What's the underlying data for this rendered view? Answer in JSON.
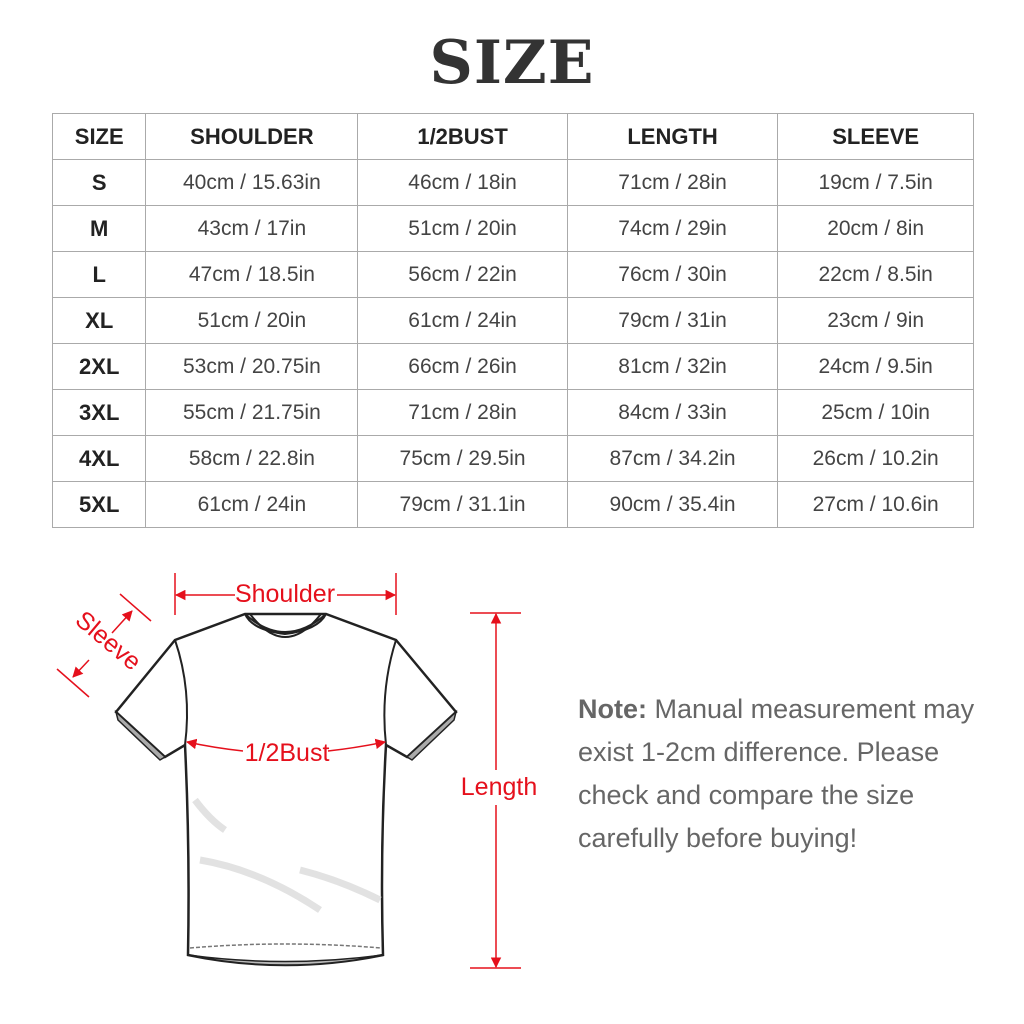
{
  "title": "SIZE",
  "table": {
    "headers": [
      "SIZE",
      "SHOULDER",
      "1/2BUST",
      "LENGTH",
      "SLEEVE"
    ],
    "rows": [
      [
        "S",
        "40cm / 15.63in",
        "46cm / 18in",
        "71cm / 28in",
        "19cm / 7.5in"
      ],
      [
        "M",
        "43cm / 17in",
        "51cm / 20in",
        "74cm / 29in",
        "20cm / 8in"
      ],
      [
        "L",
        "47cm / 18.5in",
        "56cm / 22in",
        "76cm / 30in",
        "22cm / 8.5in"
      ],
      [
        "XL",
        "51cm / 20in",
        "61cm / 24in",
        "79cm / 31in",
        "23cm / 9in"
      ],
      [
        "2XL",
        "53cm / 20.75in",
        "66cm / 26in",
        "81cm / 32in",
        "24cm / 9.5in"
      ],
      [
        "3XL",
        "55cm / 21.75in",
        "71cm / 28in",
        "84cm / 33in",
        "25cm / 10in"
      ],
      [
        "4XL",
        "58cm / 22.8in",
        "75cm / 29.5in",
        "87cm / 34.2in",
        "26cm / 10.2in"
      ],
      [
        "5XL",
        "61cm / 24in",
        "79cm / 31.1in",
        "90cm / 35.4in",
        "27cm / 10.6in"
      ]
    ]
  },
  "diagram": {
    "labels": {
      "shoulder": "Shoulder",
      "sleeve": "Sleeve",
      "bust": "1/2Bust",
      "length": "Length"
    },
    "accent_color": "#e5101c"
  },
  "note": {
    "label": "Note:",
    "text": "Manual measurement may exist 1-2cm difference. Please check and compare the size carefully before buying!"
  }
}
